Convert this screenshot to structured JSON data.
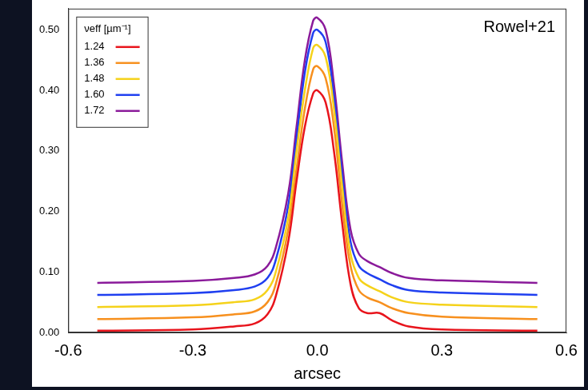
{
  "chart_data": {
    "type": "line",
    "annotation": "Rowel+21",
    "x_label": "arcsec",
    "legend_title": "νeff [µm⁻¹]",
    "legend": "upper left",
    "grid": false,
    "xlim": [
      -0.6,
      0.6
    ],
    "xticks": [
      -0.6,
      -0.3,
      {
        "value": 0,
        "label": "0.0"
      },
      0.3,
      0.6
    ],
    "ylim": [
      0,
      0.535
    ],
    "yticks": [
      {
        "value": 0,
        "label": "0.00"
      },
      {
        "value": 0.1,
        "label": "0.10"
      },
      {
        "value": 0.2,
        "label": "0.20"
      },
      {
        "value": 0.3,
        "label": "0.30"
      },
      {
        "value": 0.4,
        "label": "0.40"
      },
      {
        "value": 0.5,
        "label": "0.50"
      }
    ],
    "x": [
      -0.53,
      -0.3,
      -0.2,
      -0.15,
      -0.12,
      -0.1,
      -0.07,
      -0.05,
      -0.03,
      -0.01,
      0,
      0.02,
      0.04,
      0.06,
      0.08,
      0.1,
      0.12,
      0.15,
      0.18,
      0.22,
      0.3,
      0.53
    ],
    "series": [
      {
        "name": "1.24",
        "color": "#e8141c",
        "values": [
          0.003,
          0.005,
          0.01,
          0.015,
          0.03,
          0.06,
          0.15,
          0.25,
          0.34,
          0.395,
          0.4,
          0.38,
          0.3,
          0.18,
          0.08,
          0.04,
          0.032,
          0.032,
          0.02,
          0.01,
          0.005,
          0.003
        ]
      },
      {
        "name": "1.36",
        "color": "#f7901e",
        "values": [
          0.022,
          0.025,
          0.03,
          0.035,
          0.05,
          0.08,
          0.17,
          0.27,
          0.37,
          0.435,
          0.44,
          0.42,
          0.34,
          0.21,
          0.11,
          0.07,
          0.058,
          0.05,
          0.04,
          0.032,
          0.026,
          0.022
        ]
      },
      {
        "name": "1.48",
        "color": "#f5d21a",
        "values": [
          0.042,
          0.045,
          0.05,
          0.055,
          0.07,
          0.1,
          0.19,
          0.3,
          0.4,
          0.47,
          0.475,
          0.455,
          0.37,
          0.24,
          0.13,
          0.09,
          0.078,
          0.068,
          0.058,
          0.05,
          0.046,
          0.042
        ]
      },
      {
        "name": "1.60",
        "color": "#1f3ff0",
        "values": [
          0.062,
          0.065,
          0.07,
          0.076,
          0.09,
          0.12,
          0.21,
          0.32,
          0.43,
          0.495,
          0.5,
          0.48,
          0.39,
          0.26,
          0.15,
          0.11,
          0.098,
          0.088,
          0.078,
          0.07,
          0.066,
          0.062
        ]
      },
      {
        "name": "1.72",
        "color": "#8a1a9a",
        "values": [
          0.082,
          0.085,
          0.09,
          0.096,
          0.11,
          0.14,
          0.23,
          0.34,
          0.45,
          0.515,
          0.52,
          0.5,
          0.41,
          0.28,
          0.17,
          0.13,
          0.118,
          0.108,
          0.098,
          0.09,
          0.086,
          0.082
        ]
      }
    ]
  }
}
